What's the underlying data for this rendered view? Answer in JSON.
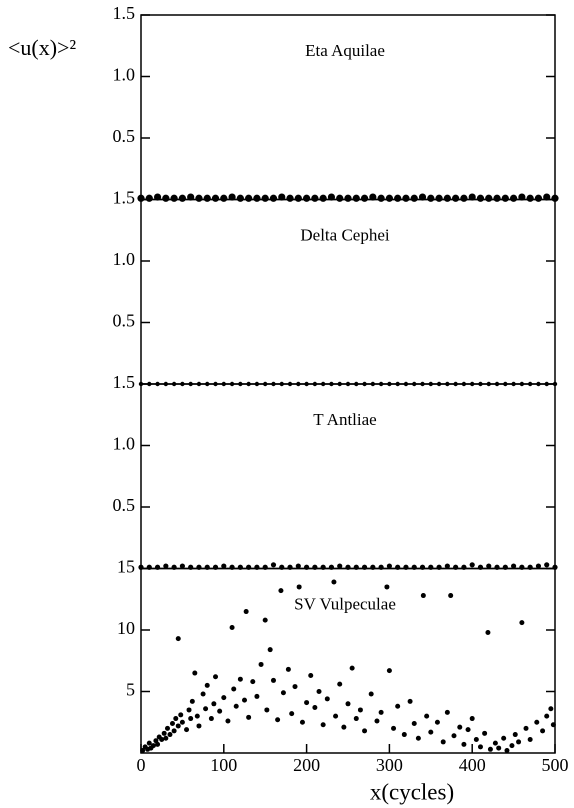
{
  "chart_data": [
    {
      "type": "scatter",
      "title": "Eta Aquilae",
      "ylabel": "<u(x)>²",
      "xlim": [
        0,
        500
      ],
      "ylim": [
        0,
        1.5
      ],
      "yticks": [
        0.5,
        {
          "value": 1,
          "label": "1.0"
        },
        1.5
      ],
      "color": "#000000",
      "x": [
        0,
        10,
        20,
        30,
        40,
        50,
        60,
        70,
        80,
        90,
        100,
        110,
        120,
        130,
        140,
        150,
        160,
        170,
        180,
        190,
        200,
        210,
        220,
        230,
        240,
        250,
        260,
        270,
        280,
        290,
        300,
        310,
        320,
        330,
        340,
        350,
        360,
        370,
        380,
        390,
        400,
        410,
        420,
        430,
        440,
        450,
        460,
        470,
        480,
        490,
        500
      ],
      "values": [
        0.01,
        0.01,
        0.02,
        0.01,
        0.01,
        0.01,
        0.02,
        0.01,
        0.01,
        0.01,
        0.01,
        0.02,
        0.01,
        0.01,
        0.01,
        0.01,
        0.01,
        0.02,
        0.01,
        0.01,
        0.01,
        0.01,
        0.01,
        0.02,
        0.01,
        0.01,
        0.01,
        0.01,
        0.02,
        0.01,
        0.01,
        0.01,
        0.01,
        0.01,
        0.02,
        0.01,
        0.01,
        0.01,
        0.01,
        0.01,
        0.02,
        0.01,
        0.01,
        0.01,
        0.01,
        0.01,
        0.02,
        0.01,
        0.01,
        0.02,
        0.01
      ]
    },
    {
      "type": "scatter",
      "title": "Delta Cephei",
      "xlim": [
        0,
        500
      ],
      "ylim": [
        0,
        1.5
      ],
      "yticks": [
        0.5,
        {
          "value": 1,
          "label": "1.0"
        },
        1.5
      ],
      "color": "#000000",
      "x": [
        0,
        10,
        20,
        30,
        40,
        50,
        60,
        70,
        80,
        90,
        100,
        110,
        120,
        130,
        140,
        150,
        160,
        170,
        180,
        190,
        200,
        210,
        220,
        230,
        240,
        250,
        260,
        270,
        280,
        290,
        300,
        310,
        320,
        330,
        340,
        350,
        360,
        370,
        380,
        390,
        400,
        410,
        420,
        430,
        440,
        450,
        460,
        470,
        480,
        490,
        500
      ],
      "values": [
        0,
        0,
        0,
        0,
        0,
        0,
        0,
        0,
        0,
        0,
        0,
        0,
        0,
        0,
        0,
        0,
        0,
        0,
        0,
        0,
        0,
        0,
        0,
        0,
        0,
        0,
        0,
        0,
        0,
        0,
        0,
        0,
        0,
        0,
        0,
        0,
        0,
        0,
        0,
        0,
        0,
        0,
        0,
        0,
        0,
        0,
        0,
        0,
        0,
        0,
        0
      ]
    },
    {
      "type": "scatter",
      "title": "T Antliae",
      "xlim": [
        0,
        500
      ],
      "ylim": [
        0,
        1.5
      ],
      "yticks": [
        0.5,
        {
          "value": 1,
          "label": "1.0"
        },
        1.5
      ],
      "color": "#000000",
      "x": [
        0,
        10,
        20,
        30,
        40,
        50,
        60,
        70,
        80,
        90,
        100,
        110,
        120,
        130,
        140,
        150,
        160,
        170,
        180,
        190,
        200,
        210,
        220,
        230,
        240,
        250,
        260,
        270,
        280,
        290,
        300,
        310,
        320,
        330,
        340,
        350,
        360,
        370,
        380,
        390,
        400,
        410,
        420,
        430,
        440,
        450,
        460,
        470,
        480,
        490,
        500
      ],
      "values": [
        0.01,
        0.01,
        0.01,
        0.02,
        0.01,
        0.02,
        0.01,
        0.01,
        0.01,
        0.01,
        0.02,
        0.01,
        0.01,
        0.01,
        0.01,
        0.01,
        0.03,
        0.01,
        0.01,
        0.02,
        0.01,
        0.01,
        0.01,
        0.01,
        0.02,
        0.01,
        0.01,
        0.01,
        0.01,
        0.01,
        0.02,
        0.01,
        0.01,
        0.01,
        0.01,
        0.01,
        0.01,
        0.02,
        0.01,
        0.01,
        0.03,
        0.01,
        0.02,
        0.01,
        0.01,
        0.02,
        0.01,
        0.01,
        0.02,
        0.03,
        0.01
      ]
    },
    {
      "type": "scatter",
      "title": "SV Vulpeculae",
      "xlabel": "x(cycles)",
      "xlim": [
        0,
        500
      ],
      "xticks": [
        0,
        100,
        200,
        300,
        400,
        500
      ],
      "ylim": [
        0,
        15
      ],
      "yticks": [
        5,
        10,
        15
      ],
      "color": "#000000",
      "x": [
        2,
        5,
        8,
        10,
        12,
        15,
        18,
        20,
        22,
        25,
        28,
        30,
        32,
        35,
        38,
        40,
        42,
        45,
        45,
        48,
        50,
        55,
        58,
        60,
        62,
        65,
        68,
        70,
        75,
        78,
        80,
        85,
        88,
        90,
        95,
        100,
        105,
        110,
        112,
        115,
        120,
        125,
        127,
        130,
        135,
        140,
        145,
        150,
        152,
        156,
        160,
        165,
        169,
        172,
        178,
        182,
        186,
        191,
        195,
        200,
        205,
        210,
        215,
        220,
        225,
        233,
        235,
        240,
        245,
        250,
        255,
        260,
        265,
        270,
        278,
        285,
        290,
        297,
        300,
        305,
        310,
        318,
        325,
        330,
        335,
        341,
        345,
        350,
        358,
        365,
        370,
        374,
        378,
        385,
        390,
        395,
        400,
        405,
        410,
        415,
        419,
        422,
        428,
        432,
        438,
        442,
        448,
        452,
        456,
        460,
        465,
        470,
        478,
        485,
        490,
        495,
        498
      ],
      "values": [
        0.2,
        0.5,
        0.3,
        0.8,
        0.4,
        0.6,
        1.0,
        0.7,
        1.3,
        1.1,
        1.6,
        1.2,
        2.0,
        1.5,
        2.4,
        1.8,
        2.8,
        9.3,
        2.2,
        3.1,
        2.5,
        1.9,
        3.5,
        2.8,
        4.2,
        6.5,
        3.0,
        2.2,
        4.8,
        3.6,
        5.5,
        2.8,
        4.0,
        6.2,
        3.4,
        4.5,
        2.6,
        10.2,
        5.2,
        3.8,
        6.0,
        4.3,
        11.5,
        2.9,
        5.8,
        4.6,
        7.2,
        10.8,
        3.5,
        8.4,
        5.9,
        2.7,
        13.2,
        4.9,
        6.8,
        3.2,
        5.4,
        13.5,
        2.5,
        4.1,
        6.3,
        3.7,
        5.0,
        2.3,
        4.4,
        13.9,
        3.0,
        5.6,
        2.1,
        4.0,
        6.9,
        2.8,
        3.5,
        1.8,
        4.8,
        2.6,
        3.3,
        13.5,
        6.7,
        2.0,
        3.8,
        1.5,
        4.2,
        2.4,
        1.2,
        12.8,
        3.0,
        1.7,
        2.5,
        0.9,
        3.3,
        12.8,
        1.4,
        2.1,
        0.7,
        1.9,
        2.8,
        1.1,
        0.5,
        1.6,
        9.8,
        0.3,
        0.8,
        0.4,
        1.2,
        0.2,
        0.6,
        1.5,
        0.9,
        10.6,
        2.0,
        1.1,
        2.5,
        1.8,
        3.0,
        3.6,
        2.3
      ]
    }
  ]
}
